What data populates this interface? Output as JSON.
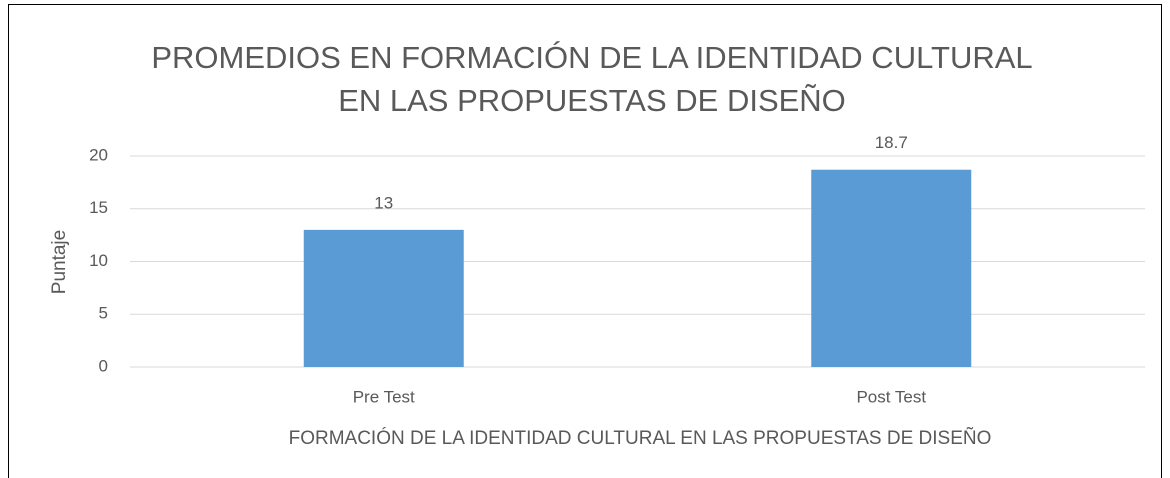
{
  "chart_data": {
    "type": "bar",
    "title": [
      "PROMEDIOS EN FORMACIÓN DE LA IDENTIDAD CULTURAL",
      "EN LAS PROPUESTAS DE DISEÑO"
    ],
    "x_label": "FORMACIÓN DE LA IDENTIDAD CULTURAL EN LAS PROPUESTAS DE DISEÑO",
    "y_label": "Puntaje",
    "categories": [
      "Pre Test",
      "Post Test"
    ],
    "values": [
      13,
      18.7
    ],
    "color": "#5b9bd5",
    "ylim": [
      0,
      20
    ],
    "yticks": [
      0,
      5,
      10,
      15,
      20
    ],
    "grid": true
  }
}
